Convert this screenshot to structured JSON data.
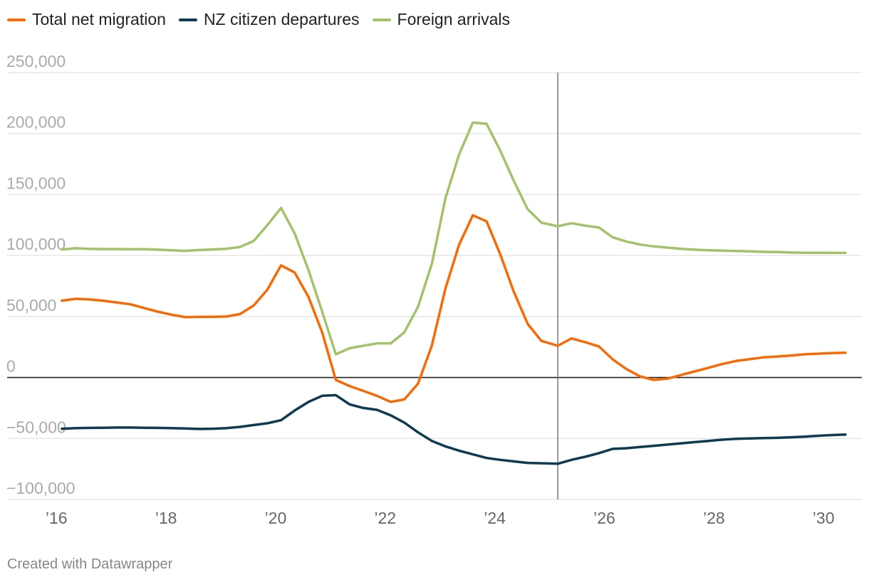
{
  "chart_data": {
    "type": "line",
    "title": "",
    "xlabel": "",
    "ylabel": "",
    "x_range": [
      2016,
      2030.6
    ],
    "ylim": [
      -100000,
      250000
    ],
    "y_ticks": [
      250000,
      200000,
      150000,
      100000,
      50000,
      0,
      -50000,
      -100000
    ],
    "y_tick_labels": [
      "250,000",
      "200,000",
      "150,000",
      "100,000",
      "50,000",
      "0",
      "−50,000",
      "−100,000"
    ],
    "x_ticks": [
      2016,
      2018,
      2020,
      2022,
      2024,
      2026,
      2028,
      2030
    ],
    "x_tick_labels": [
      "’16",
      "’18",
      "’20",
      "’22",
      "’24",
      "’26",
      "’28",
      "’30"
    ],
    "marker_line_x": 2025.15,
    "grid": true,
    "legend_position": "top-left",
    "series": [
      {
        "name": "Total net migration",
        "color": "#f46b08",
        "points": [
          [
            2016.1,
            63000
          ],
          [
            2016.35,
            64500
          ],
          [
            2016.6,
            64000
          ],
          [
            2016.85,
            63000
          ],
          [
            2017.1,
            61500
          ],
          [
            2017.35,
            60000
          ],
          [
            2017.6,
            57000
          ],
          [
            2017.85,
            54000
          ],
          [
            2018.1,
            51500
          ],
          [
            2018.35,
            49500
          ],
          [
            2018.6,
            49700
          ],
          [
            2018.85,
            49800
          ],
          [
            2019.1,
            50000
          ],
          [
            2019.35,
            52000
          ],
          [
            2019.6,
            59000
          ],
          [
            2019.85,
            72000
          ],
          [
            2020.1,
            92000
          ],
          [
            2020.35,
            86000
          ],
          [
            2020.6,
            66000
          ],
          [
            2020.85,
            37000
          ],
          [
            2021.1,
            -2000
          ],
          [
            2021.35,
            -7000
          ],
          [
            2021.6,
            -11000
          ],
          [
            2021.85,
            -15000
          ],
          [
            2022.1,
            -20000
          ],
          [
            2022.35,
            -18000
          ],
          [
            2022.6,
            -5000
          ],
          [
            2022.85,
            26000
          ],
          [
            2023.1,
            73000
          ],
          [
            2023.35,
            109000
          ],
          [
            2023.6,
            133000
          ],
          [
            2023.85,
            128000
          ],
          [
            2024.1,
            101000
          ],
          [
            2024.35,
            70000
          ],
          [
            2024.6,
            44000
          ],
          [
            2024.85,
            30000
          ],
          [
            2025.15,
            26000
          ],
          [
            2025.4,
            32000
          ],
          [
            2025.65,
            29000
          ],
          [
            2025.9,
            25500
          ],
          [
            2026.15,
            15000
          ],
          [
            2026.4,
            7000
          ],
          [
            2026.65,
            1000
          ],
          [
            2026.9,
            -2000
          ],
          [
            2027.15,
            -1000
          ],
          [
            2027.4,
            2000
          ],
          [
            2027.65,
            5000
          ],
          [
            2027.9,
            8000
          ],
          [
            2028.15,
            11000
          ],
          [
            2028.4,
            13500
          ],
          [
            2028.65,
            15000
          ],
          [
            2028.9,
            16500
          ],
          [
            2029.15,
            17200
          ],
          [
            2029.4,
            18000
          ],
          [
            2029.65,
            19000
          ],
          [
            2029.9,
            19500
          ],
          [
            2030.15,
            20000
          ],
          [
            2030.4,
            20300
          ]
        ]
      },
      {
        "name": "NZ citizen departures",
        "color": "#0e3a52",
        "points": [
          [
            2016.1,
            -42000
          ],
          [
            2016.35,
            -41500
          ],
          [
            2016.6,
            -41300
          ],
          [
            2016.85,
            -41200
          ],
          [
            2017.1,
            -41000
          ],
          [
            2017.35,
            -41000
          ],
          [
            2017.6,
            -41200
          ],
          [
            2017.85,
            -41300
          ],
          [
            2018.1,
            -41500
          ],
          [
            2018.35,
            -41800
          ],
          [
            2018.6,
            -42200
          ],
          [
            2018.85,
            -42000
          ],
          [
            2019.1,
            -41500
          ],
          [
            2019.35,
            -40500
          ],
          [
            2019.6,
            -39000
          ],
          [
            2019.85,
            -37500
          ],
          [
            2020.1,
            -35000
          ],
          [
            2020.35,
            -27000
          ],
          [
            2020.6,
            -20000
          ],
          [
            2020.85,
            -15000
          ],
          [
            2021.1,
            -14500
          ],
          [
            2021.35,
            -22000
          ],
          [
            2021.6,
            -25000
          ],
          [
            2021.85,
            -26500
          ],
          [
            2022.1,
            -31000
          ],
          [
            2022.35,
            -37000
          ],
          [
            2022.6,
            -45000
          ],
          [
            2022.85,
            -52000
          ],
          [
            2023.1,
            -56500
          ],
          [
            2023.35,
            -60000
          ],
          [
            2023.6,
            -63000
          ],
          [
            2023.85,
            -66000
          ],
          [
            2024.1,
            -67500
          ],
          [
            2024.35,
            -68800
          ],
          [
            2024.6,
            -70000
          ],
          [
            2024.85,
            -70300
          ],
          [
            2025.15,
            -70700
          ],
          [
            2025.4,
            -67500
          ],
          [
            2025.65,
            -65000
          ],
          [
            2025.9,
            -62000
          ],
          [
            2026.15,
            -58500
          ],
          [
            2026.4,
            -58000
          ],
          [
            2026.65,
            -57000
          ],
          [
            2026.9,
            -56000
          ],
          [
            2027.15,
            -55000
          ],
          [
            2027.4,
            -54000
          ],
          [
            2027.65,
            -53000
          ],
          [
            2027.9,
            -52000
          ],
          [
            2028.15,
            -51000
          ],
          [
            2028.4,
            -50300
          ],
          [
            2028.65,
            -50000
          ],
          [
            2028.9,
            -49700
          ],
          [
            2029.15,
            -49500
          ],
          [
            2029.4,
            -49000
          ],
          [
            2029.65,
            -48500
          ],
          [
            2029.9,
            -47800
          ],
          [
            2030.15,
            -47200
          ],
          [
            2030.4,
            -46800
          ]
        ]
      },
      {
        "name": "Foreign arrivals",
        "color": "#a3c26b",
        "points": [
          [
            2016.1,
            105000
          ],
          [
            2016.35,
            106000
          ],
          [
            2016.6,
            105500
          ],
          [
            2016.85,
            105300
          ],
          [
            2017.1,
            105300
          ],
          [
            2017.35,
            105200
          ],
          [
            2017.6,
            105200
          ],
          [
            2017.85,
            104800
          ],
          [
            2018.1,
            104300
          ],
          [
            2018.35,
            103800
          ],
          [
            2018.6,
            104500
          ],
          [
            2018.85,
            105000
          ],
          [
            2019.1,
            105500
          ],
          [
            2019.35,
            107000
          ],
          [
            2019.6,
            112000
          ],
          [
            2019.85,
            125000
          ],
          [
            2020.1,
            139000
          ],
          [
            2020.35,
            118000
          ],
          [
            2020.6,
            88000
          ],
          [
            2020.85,
            54000
          ],
          [
            2021.1,
            19000
          ],
          [
            2021.35,
            24000
          ],
          [
            2021.6,
            26000
          ],
          [
            2021.85,
            28000
          ],
          [
            2022.1,
            28000
          ],
          [
            2022.35,
            37000
          ],
          [
            2022.6,
            58000
          ],
          [
            2022.85,
            93000
          ],
          [
            2023.1,
            147000
          ],
          [
            2023.35,
            183000
          ],
          [
            2023.6,
            209000
          ],
          [
            2023.85,
            208000
          ],
          [
            2024.1,
            186000
          ],
          [
            2024.35,
            161000
          ],
          [
            2024.6,
            138000
          ],
          [
            2024.85,
            127000
          ],
          [
            2025.15,
            124000
          ],
          [
            2025.4,
            126500
          ],
          [
            2025.65,
            124500
          ],
          [
            2025.9,
            123000
          ],
          [
            2026.15,
            115000
          ],
          [
            2026.4,
            111500
          ],
          [
            2026.65,
            109000
          ],
          [
            2026.9,
            107500
          ],
          [
            2027.15,
            106500
          ],
          [
            2027.4,
            105500
          ],
          [
            2027.65,
            104800
          ],
          [
            2027.9,
            104300
          ],
          [
            2028.15,
            104000
          ],
          [
            2028.4,
            103700
          ],
          [
            2028.65,
            103400
          ],
          [
            2028.9,
            103000
          ],
          [
            2029.15,
            102800
          ],
          [
            2029.4,
            102500
          ],
          [
            2029.65,
            102300
          ],
          [
            2029.9,
            102300
          ],
          [
            2030.15,
            102200
          ],
          [
            2030.4,
            102200
          ]
        ]
      }
    ],
    "credit": "Created with Datawrapper"
  }
}
